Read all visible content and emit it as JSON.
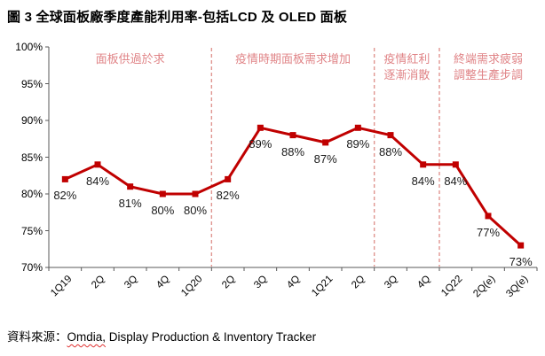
{
  "title": "圖 3 全球面板廠季度產能利用率-包括LCD 及 OLED 面板",
  "source": {
    "prefix": "資料來源：",
    "underlined": "Omdia,",
    "rest": " Display Production & Inventory Tracker"
  },
  "colors": {
    "line": "#C00000",
    "marker": "#C00000",
    "annotation": "#E08487",
    "divider": "#E09590",
    "axis": "#595959",
    "label_text": "#1a1a1a"
  },
  "chart_data": {
    "type": "line",
    "title": "圖 3 全球面板廠季度產能利用率-包括LCD 及 OLED 面板",
    "xlabel": "",
    "ylabel": "",
    "categories": [
      "1Q19",
      "2Q",
      "3Q",
      "4Q",
      "1Q20",
      "2Q",
      "3Q",
      "4Q",
      "1Q21",
      "2Q",
      "3Q",
      "4Q",
      "1Q22",
      "2Q(e)",
      "3Q(e)"
    ],
    "values": [
      82,
      84,
      81,
      80,
      80,
      82,
      89,
      88,
      87,
      89,
      88,
      84,
      84,
      77,
      73
    ],
    "point_labels": [
      "82%",
      "84%",
      "81%",
      "80%",
      "80%",
      "82%",
      "89%",
      "88%",
      "87%",
      "89%",
      "88%",
      "84%",
      "84%",
      "77%",
      "73%"
    ],
    "ylim": [
      70,
      100
    ],
    "ytick_step": 5,
    "ytick_labels": [
      "100%",
      "95%",
      "90%",
      "85%",
      "80%",
      "75%",
      "70%"
    ],
    "grid": false,
    "legend": "none",
    "marker": "square",
    "dividers_after_index": [
      4,
      9,
      11
    ],
    "annotations": [
      {
        "lines": [
          "面板供過於求"
        ]
      },
      {
        "lines": [
          "疫情時期面板需求增加"
        ]
      },
      {
        "lines": [
          "疫情紅利",
          "逐漸消散"
        ]
      },
      {
        "lines": [
          "終端需求疲弱",
          "調整生產步調"
        ]
      }
    ]
  }
}
